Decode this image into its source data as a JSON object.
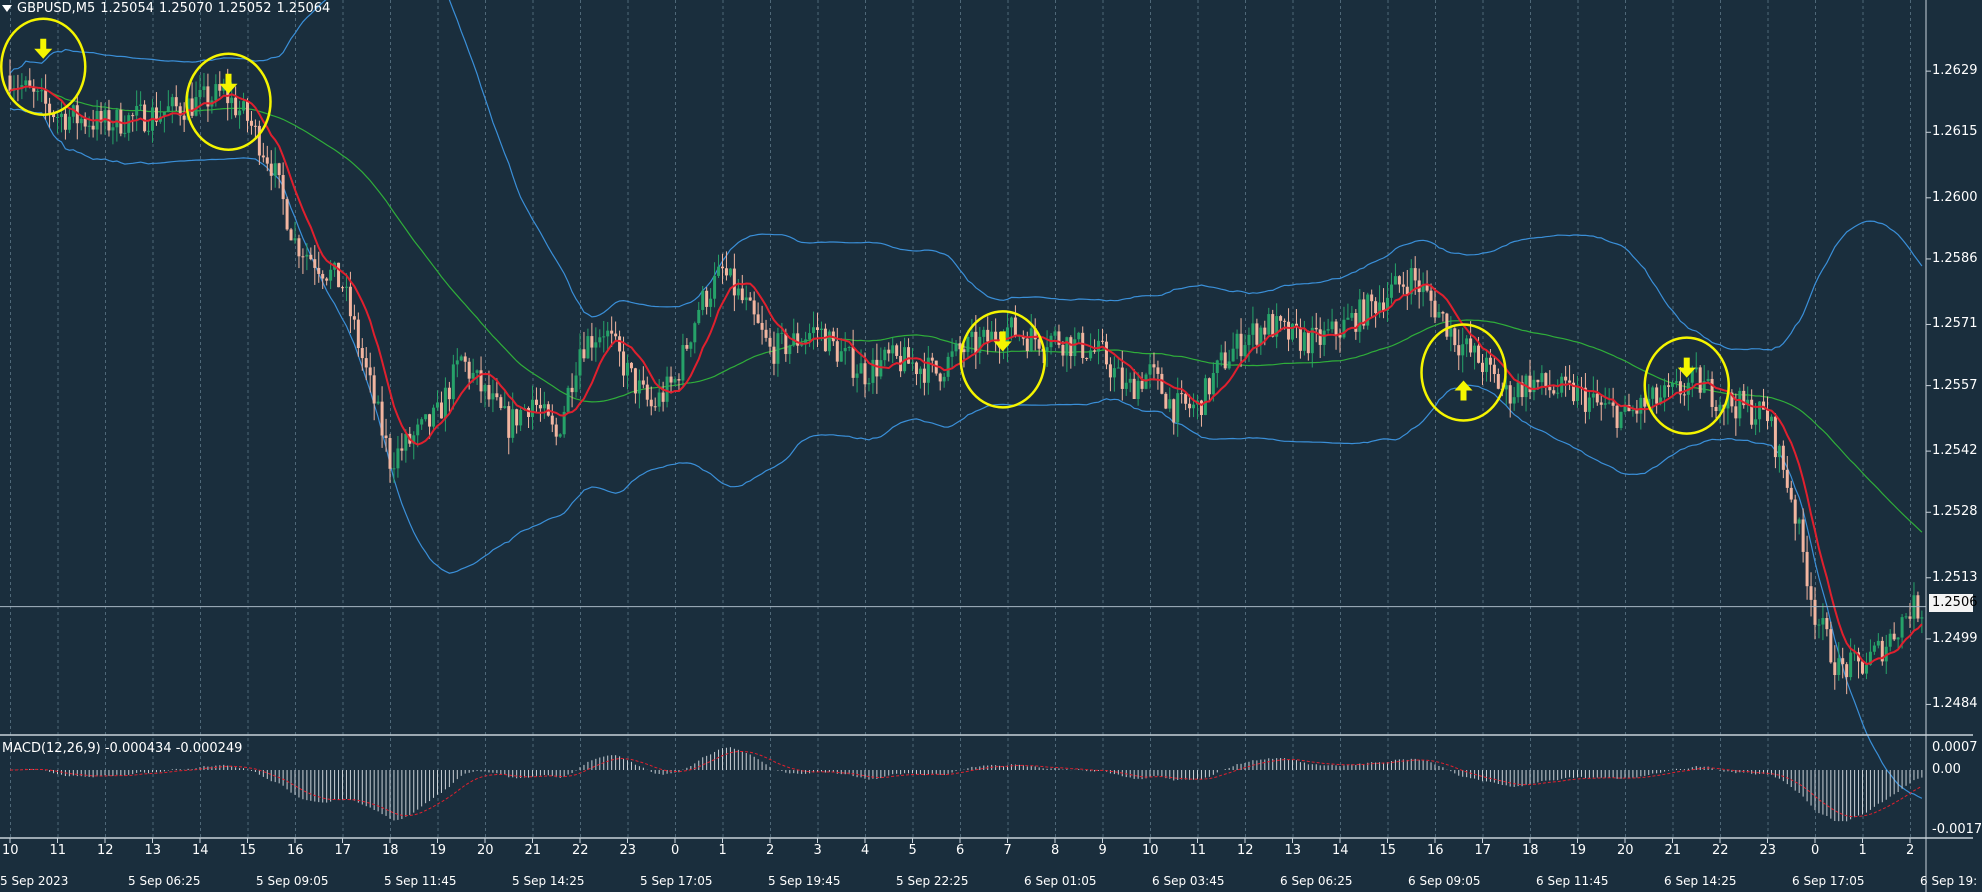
{
  "header": {
    "symbol": "GBPUSD,M5",
    "open": "1.25054",
    "high": "1.25070",
    "low": "1.25052",
    "close": "1.25064"
  },
  "macd": {
    "label": "MACD(12,26,9) -0.000434 -0.000249",
    "axis_ticks": [
      "0.0007",
      "0.00",
      "-0.0017"
    ]
  },
  "current_price_label": "1.2506",
  "colors": {
    "background": "#1a2e3d",
    "bull_candle": "#26a269",
    "bear_candle": "#f2b5a0",
    "fast_ma": "#e0202e",
    "mid_ma": "#2fae3a",
    "bands": "#3a8fd8",
    "annotation": "#f5f500"
  },
  "chart_data": {
    "type": "candlestick",
    "symbol": "GBPUSD",
    "timeframe": "M5",
    "price_ticks": [
      "1.2629",
      "1.2615",
      "1.2600",
      "1.2586",
      "1.2571",
      "1.2557",
      "1.2542",
      "1.2528",
      "1.2513",
      "1.2499",
      "1.2484"
    ],
    "ylim": [
      1.2477,
      1.2643
    ],
    "current_price": 1.25064,
    "hour_ticks": [
      "10",
      "11",
      "12",
      "13",
      "14",
      "15",
      "16",
      "17",
      "18",
      "19",
      "20",
      "21",
      "22",
      "23",
      "0",
      "1",
      "2",
      "3",
      "4",
      "5",
      "6",
      "7",
      "8",
      "9",
      "10",
      "11",
      "12",
      "13",
      "14",
      "15",
      "16",
      "17",
      "18",
      "19",
      "20",
      "21",
      "22",
      "23",
      "0",
      "1",
      "2"
    ],
    "date_ticks": [
      "5 Sep 2023",
      "5 Sep 06:25",
      "5 Sep 09:05",
      "5 Sep 11:45",
      "5 Sep 14:25",
      "5 Sep 17:05",
      "5 Sep 19:45",
      "5 Sep 22:25",
      "6 Sep 01:05",
      "6 Sep 03:45",
      "6 Sep 06:25",
      "6 Sep 09:05",
      "6 Sep 11:45",
      "6 Sep 14:25",
      "6 Sep 17:05",
      "6 Sep 19:"
    ],
    "close_path": [
      [
        0,
        1.2628
      ],
      [
        0.5,
        1.2623
      ],
      [
        1,
        1.2619
      ],
      [
        2,
        1.2617
      ],
      [
        3,
        1.2619
      ],
      [
        4,
        1.2622
      ],
      [
        4.5,
        1.2624
      ],
      [
        5,
        1.2618
      ],
      [
        5.5,
        1.2608
      ],
      [
        6,
        1.259
      ],
      [
        7,
        1.258
      ],
      [
        7.5,
        1.256
      ],
      [
        8,
        1.254
      ],
      [
        8.5,
        1.2545
      ],
      [
        9,
        1.255
      ],
      [
        9.5,
        1.2563
      ],
      [
        10,
        1.2555
      ],
      [
        10.5,
        1.2548
      ],
      [
        11,
        1.2554
      ],
      [
        11.5,
        1.2545
      ],
      [
        12,
        1.2566
      ],
      [
        12.5,
        1.257
      ],
      [
        13,
        1.256
      ],
      [
        13.5,
        1.2552
      ],
      [
        14,
        1.2558
      ],
      [
        14.5,
        1.2575
      ],
      [
        15,
        1.2583
      ],
      [
        15.5,
        1.2575
      ],
      [
        16,
        1.2565
      ],
      [
        16.5,
        1.2567
      ],
      [
        17,
        1.257
      ],
      [
        17.5,
        1.2564
      ],
      [
        18,
        1.256
      ],
      [
        18.5,
        1.2563
      ],
      [
        19,
        1.2562
      ],
      [
        19.5,
        1.256
      ],
      [
        20,
        1.2565
      ],
      [
        20.5,
        1.2567
      ],
      [
        21,
        1.257
      ],
      [
        21.5,
        1.2568
      ],
      [
        22,
        1.2568
      ],
      [
        22.5,
        1.2566
      ],
      [
        23,
        1.2564
      ],
      [
        23.5,
        1.2556
      ],
      [
        24,
        1.256
      ],
      [
        24.5,
        1.2552
      ],
      [
        25,
        1.2552
      ],
      [
        25.5,
        1.2562
      ],
      [
        26,
        1.2568
      ],
      [
        26.5,
        1.2571
      ],
      [
        27,
        1.2568
      ],
      [
        27.5,
        1.2567
      ],
      [
        28,
        1.257
      ],
      [
        28.5,
        1.2574
      ],
      [
        29,
        1.2578
      ],
      [
        29.5,
        1.2582
      ],
      [
        30,
        1.2575
      ],
      [
        30.5,
        1.2567
      ],
      [
        31,
        1.2562
      ],
      [
        31.5,
        1.2555
      ],
      [
        32,
        1.2558
      ],
      [
        32.5,
        1.2556
      ],
      [
        33,
        1.2555
      ],
      [
        33.5,
        1.2552
      ],
      [
        34,
        1.255
      ],
      [
        34.5,
        1.2553
      ],
      [
        35,
        1.2555
      ],
      [
        35.5,
        1.2558
      ],
      [
        36,
        1.2554
      ],
      [
        36.5,
        1.2552
      ],
      [
        37,
        1.255
      ],
      [
        37.5,
        1.2532
      ],
      [
        38,
        1.2505
      ],
      [
        38.5,
        1.2492
      ],
      [
        39,
        1.2493
      ],
      [
        39.5,
        1.2498
      ],
      [
        40,
        1.2506
      ],
      [
        40.3,
        1.2506
      ]
    ],
    "annotations": [
      {
        "type": "sell-arrow",
        "hour_index": 0.7,
        "price": 1.263
      },
      {
        "type": "sell-arrow",
        "hour_index": 4.6,
        "price": 1.2622
      },
      {
        "type": "sell-arrow",
        "hour_index": 20.9,
        "price": 1.2563
      },
      {
        "type": "buy-arrow",
        "hour_index": 30.6,
        "price": 1.256
      },
      {
        "type": "sell-arrow",
        "hour_index": 35.3,
        "price": 1.2557
      }
    ]
  }
}
